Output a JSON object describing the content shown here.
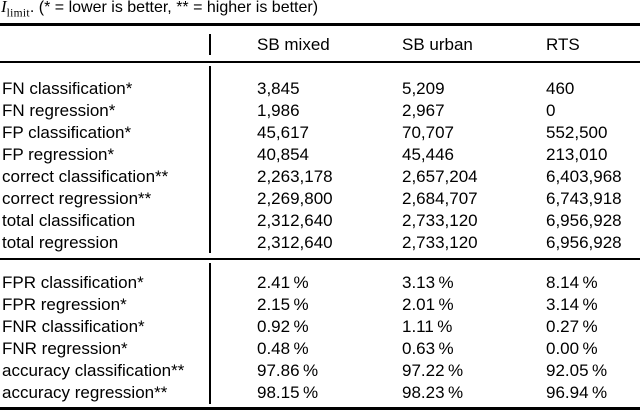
{
  "caption": {
    "symbol": "I",
    "subscript": "limit",
    "text": ". (* = lower is better, ** = higher is better)"
  },
  "table": {
    "columns": [
      "SB mixed",
      "SB urban",
      "RTS"
    ],
    "sections": [
      {
        "name": "absolute-counts",
        "rows": [
          {
            "label": "FN classification*",
            "values": [
              "3,845",
              "5,209",
              "460"
            ]
          },
          {
            "label": "FN regression*",
            "values": [
              "1,986",
              "2,967",
              "0"
            ]
          },
          {
            "label": "FP classification*",
            "values": [
              "45,617",
              "70,707",
              "552,500"
            ]
          },
          {
            "label": "FP regression*",
            "values": [
              "40,854",
              "45,446",
              "213,010"
            ]
          },
          {
            "label": "correct classification**",
            "values": [
              "2,263,178",
              "2,657,204",
              "6,403,968"
            ]
          },
          {
            "label": "correct regression**",
            "values": [
              "2,269,800",
              "2,684,707",
              "6,743,918"
            ]
          },
          {
            "label": "total classification",
            "values": [
              "2,312,640",
              "2,733,120",
              "6,956,928"
            ]
          },
          {
            "label": "total regression",
            "values": [
              "2,312,640",
              "2,733,120",
              "6,956,928"
            ]
          }
        ]
      },
      {
        "name": "rates",
        "rows": [
          {
            "label": "FPR classification*",
            "values": [
              "2.41 %",
              "3.13 %",
              "8.14 %"
            ]
          },
          {
            "label": "FPR regression*",
            "values": [
              "2.15 %",
              "2.01 %",
              "3.14 %"
            ]
          },
          {
            "label": "FNR classification*",
            "values": [
              "0.92 %",
              "1.11 %",
              "0.27 %"
            ]
          },
          {
            "label": "FNR regression*",
            "values": [
              "0.48 %",
              "0.63 %",
              "0.00 %"
            ]
          },
          {
            "label": "accuracy classification**",
            "values": [
              "97.86 %",
              "97.22 %",
              "92.05 %"
            ]
          },
          {
            "label": "accuracy regression**",
            "values": [
              "98.15 %",
              "98.23 %",
              "96.94 %"
            ]
          }
        ]
      }
    ]
  },
  "colors": {
    "background": "#ffffff",
    "text": "#000000",
    "rule": "#000000"
  }
}
